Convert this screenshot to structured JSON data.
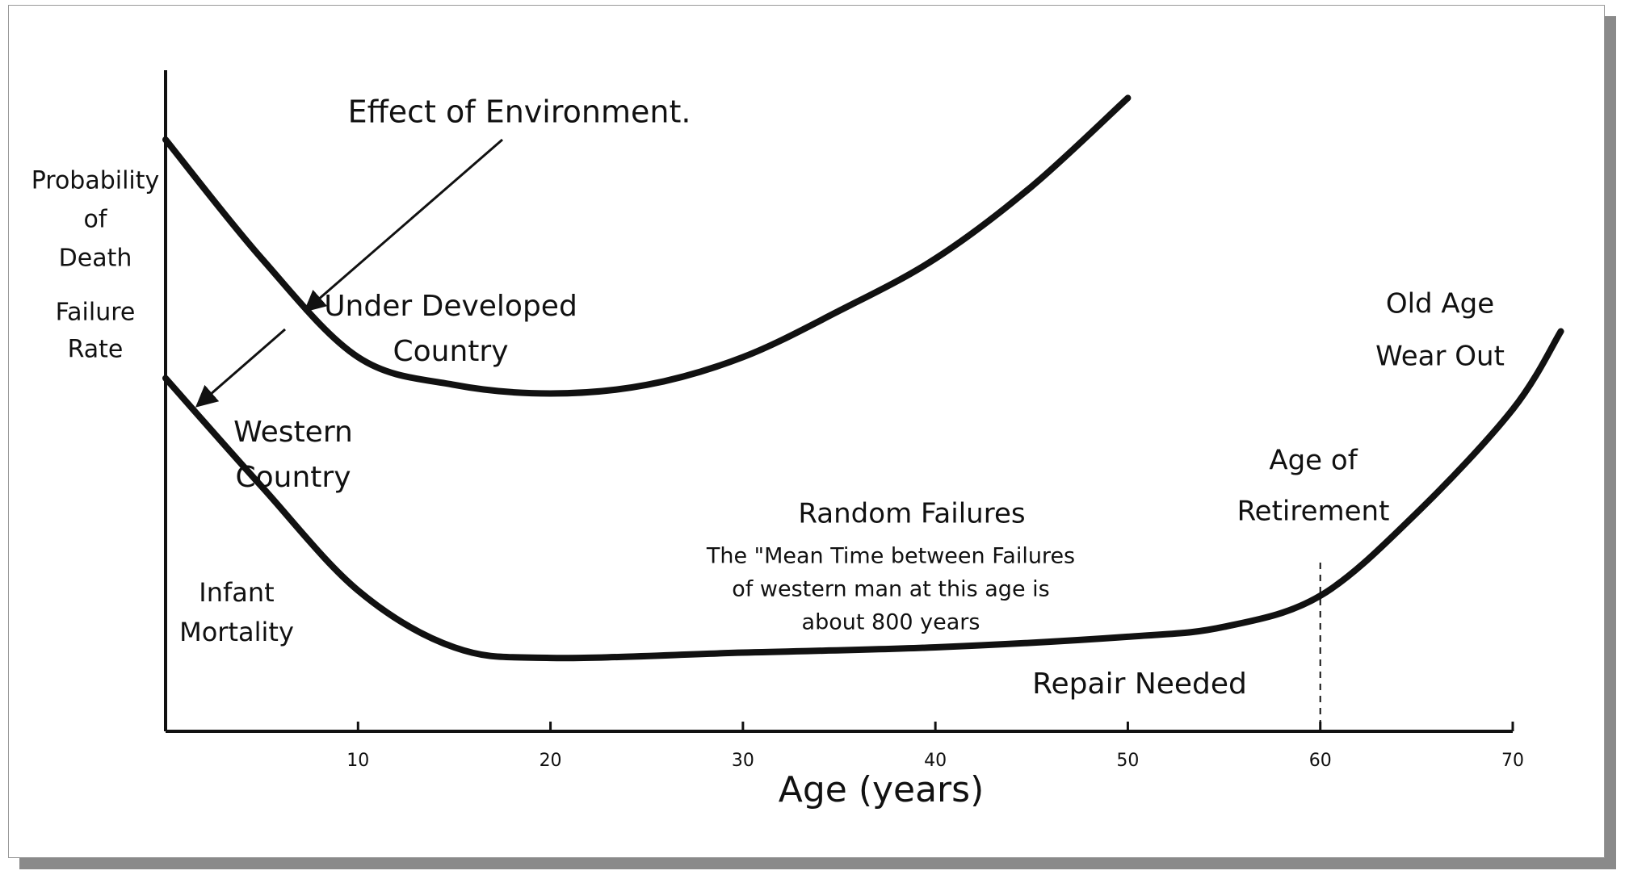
{
  "chart_data": {
    "type": "line",
    "x_label": "Age (years)",
    "y_label": [
      "Probability",
      "of",
      "Death"
    ],
    "y_label_2": [
      "Failure",
      "Rate"
    ],
    "xlim": [
      0,
      70
    ],
    "xticks": [
      10,
      20,
      30,
      40,
      50,
      60,
      70
    ],
    "ylim": [
      0,
      100
    ],
    "series": [
      {
        "name": "Under Developed Country",
        "color": "#111111",
        "x": [
          0,
          5,
          10,
          15,
          20,
          25,
          30,
          35,
          40,
          45,
          50
        ],
        "values": [
          89.5,
          71.5,
          56.6,
          52.4,
          51.1,
          52.4,
          56.6,
          63.6,
          71.5,
          82.4,
          95.8
        ]
      },
      {
        "name": "Western Country",
        "color": "#111111",
        "x": [
          0,
          5,
          10,
          15,
          20,
          30,
          40,
          50,
          55,
          60,
          65,
          70,
          72.5
        ],
        "values": [
          53.4,
          37,
          21.3,
          12.7,
          11.1,
          11.9,
          12.7,
          14.3,
          15.8,
          20.5,
          33,
          48.7,
          60.5
        ]
      }
    ],
    "annotations": [
      {
        "lines": [
          "Effect of Environment."
        ]
      },
      {
        "lines": [
          "Infant",
          "Mortality"
        ]
      },
      {
        "lines": [
          "Random Failures"
        ]
      },
      {
        "lines": [
          "The \"Mean Time between Failures",
          "of western man at this age is",
          "about 800 years"
        ]
      },
      {
        "lines": [
          "Repair Needed"
        ]
      },
      {
        "lines": [
          "Age of",
          "Retirement"
        ]
      },
      {
        "lines": [
          "Old Age",
          "Wear Out"
        ]
      }
    ]
  }
}
